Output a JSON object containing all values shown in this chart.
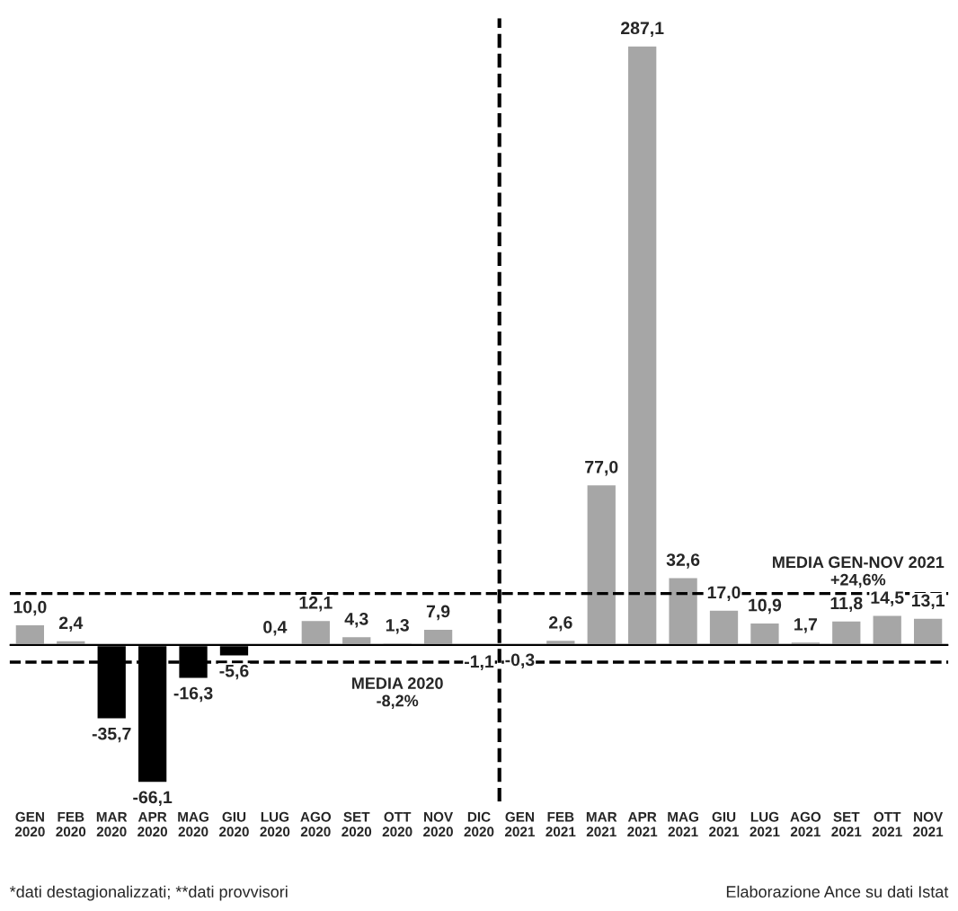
{
  "chart_data": {
    "type": "bar",
    "categories": [
      "GEN\n2020",
      "FEB\n2020",
      "MAR\n2020",
      "APR\n2020",
      "MAG\n2020",
      "GIU\n2020",
      "LUG\n2020",
      "AGO\n2020",
      "SET\n2020",
      "OTT\n2020",
      "NOV\n2020",
      "DIC\n2020",
      "GEN\n2021",
      "FEB\n2021",
      "MAR\n2021",
      "APR\n2021",
      "MAG\n2021",
      "GIU\n2021",
      "LUG\n2021",
      "AGO\n2021",
      "SET\n2021",
      "OTT\n2021",
      "NOV\n2021"
    ],
    "values": [
      10.0,
      2.4,
      -35.7,
      -66.1,
      -16.3,
      -5.6,
      0.4,
      12.1,
      4.3,
      1.3,
      7.9,
      -1.1,
      -0.3,
      2.6,
      77.0,
      287.1,
      32.6,
      17.0,
      10.9,
      1.7,
      11.8,
      14.5,
      13.1
    ],
    "value_labels": [
      "10,0",
      "2,4",
      "-35,7",
      "-66,1",
      "-16,3",
      "-5,6",
      "0,4",
      "12,1",
      "4,3",
      "1,3",
      "7,9",
      "-1,1",
      "-0,3",
      "2,6",
      "77,0",
      "287,1",
      "32,6",
      "17,0",
      "10,9",
      "1,7",
      "11,8",
      "14,5",
      "13,1"
    ],
    "colors": [
      "#a6a6a6",
      "#a6a6a6",
      "#000000",
      "#000000",
      "#000000",
      "#000000",
      "#a6a6a6",
      "#a6a6a6",
      "#a6a6a6",
      "#a6a6a6",
      "#a6a6a6",
      "#000000",
      "#000000",
      "#a6a6a6",
      "#a6a6a6",
      "#a6a6a6",
      "#a6a6a6",
      "#a6a6a6",
      "#a6a6a6",
      "#a6a6a6",
      "#a6a6a6",
      "#a6a6a6",
      "#a6a6a6"
    ],
    "ylim": [
      -75,
      300
    ],
    "ref_lines": [
      {
        "axis": "y",
        "value": -8.2,
        "label": "MEDIA 2020\n-8,2%",
        "color": "#000000",
        "line_style": "dashed"
      },
      {
        "axis": "y",
        "value": 24.6,
        "label": "MEDIA GEN-NOV 2021\n+24,6%",
        "color": "#000000",
        "line_style": "dashed"
      }
    ],
    "annotations": [
      "*dati destagionalizzati; **dati provvisori",
      "Elaborazione Ance su dati Istat"
    ],
    "grid": false,
    "legend": false
  }
}
